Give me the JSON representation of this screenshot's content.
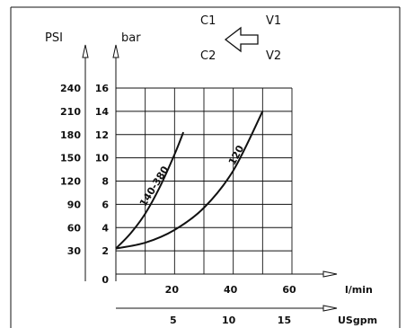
{
  "chart_data": {
    "type": "line",
    "title": "",
    "ports": {
      "c1": "C1",
      "c2": "C2",
      "v1": "V1",
      "v2": "V2"
    },
    "icons": {
      "direction": "arrow-left-outline-icon"
    },
    "colors": {
      "grid": "#111111",
      "curve": "#111111",
      "text": "#111111"
    },
    "grid": true,
    "y_primary": {
      "label": "bar",
      "range": [
        0,
        16
      ],
      "ticks": [
        "0",
        "2",
        "4",
        "6",
        "8",
        "10",
        "12",
        "14",
        "16"
      ]
    },
    "y_secondary": {
      "label": "PSI",
      "ticks": [
        "30",
        "60",
        "90",
        "120",
        "150",
        "180",
        "210",
        "240"
      ]
    },
    "x_primary": {
      "label": "l/min",
      "range": [
        0,
        60
      ],
      "ticks": [
        "20",
        "40",
        "60"
      ]
    },
    "x_secondary": {
      "label": "USgpm",
      "ticks": [
        "5",
        "10",
        "15"
      ]
    },
    "series": [
      {
        "name": "140-380",
        "x": [
          0,
          5,
          10,
          15,
          20,
          23
        ],
        "y": [
          2.2,
          3.5,
          5.2,
          7.5,
          10.3,
          12.2
        ]
      },
      {
        "name": "120",
        "x": [
          0,
          10,
          20,
          30,
          40,
          50
        ],
        "y": [
          2.2,
          2.7,
          3.8,
          5.7,
          8.9,
          14.0
        ]
      }
    ]
  }
}
